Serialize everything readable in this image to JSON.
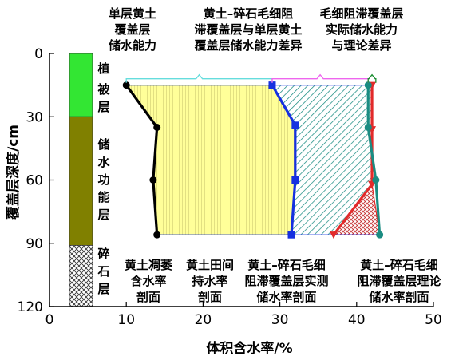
{
  "axes": {
    "x_title": "体积含水率/%",
    "y_title": "覆盖层深度/cm",
    "x_ticks": [
      "0",
      "10",
      "20",
      "30",
      "40",
      "50"
    ],
    "y_ticks": [
      "0",
      "30",
      "60",
      "90",
      "120"
    ]
  },
  "layers": [
    {
      "label": "植被层",
      "lines": [
        "植",
        "被",
        "层"
      ],
      "depth_from": 0,
      "depth_to": 30,
      "color": "#33e633"
    },
    {
      "label": "储水功能层",
      "lines": [
        "储",
        "水",
        "功",
        "能",
        "层"
      ],
      "depth_from": 30,
      "depth_to": 91,
      "color": "#808000"
    },
    {
      "label": "碎石层",
      "lines": [
        "碎",
        "石",
        "层"
      ],
      "depth_from": 91,
      "depth_to": 120,
      "color": "#cccccc"
    }
  ],
  "top_annotations": [
    {
      "id": "single",
      "lines": [
        "单层黄土",
        "覆盖层",
        "储水能力"
      ]
    },
    {
      "id": "diff",
      "lines": [
        "黄土–碎石毛细阻",
        "滞覆盖层与单层黄土",
        "覆盖层储水能力差异"
      ]
    },
    {
      "id": "actual",
      "lines": [
        "毛细阻滞覆盖层",
        "实际储水能力",
        "与理论差异"
      ]
    }
  ],
  "bottom_annotations": [
    {
      "id": "wilting",
      "lines": [
        "黄土凋萎",
        "含水率",
        "剖面"
      ]
    },
    {
      "id": "field",
      "lines": [
        "黄土田间",
        "持水率",
        "剖面"
      ]
    },
    {
      "id": "measured",
      "lines": [
        "黄土–碎石毛细",
        "阻滞覆盖层实测",
        "储水率剖面"
      ]
    },
    {
      "id": "theory",
      "lines": [
        "黄土–碎石毛细",
        "阻滞覆盖层理论",
        "储水率剖面"
      ]
    }
  ],
  "chart_data": {
    "type": "line",
    "xlim": [
      0,
      50
    ],
    "ylim": [
      0,
      120
    ],
    "y_inverted": true,
    "series": [
      {
        "key": "wilting",
        "color": "#000000",
        "marker": "circle",
        "points": [
          [
            10,
            15
          ],
          [
            14,
            35
          ],
          [
            13.5,
            60
          ],
          [
            14,
            86
          ]
        ]
      },
      {
        "key": "field",
        "color": "#1530e0",
        "marker": "square",
        "points": [
          [
            29,
            15
          ],
          [
            32,
            34
          ],
          [
            32,
            60
          ],
          [
            31.5,
            86
          ]
        ]
      },
      {
        "key": "measured",
        "color": "#e22a2a",
        "marker": "triangle",
        "points": [
          [
            42,
            15
          ],
          [
            42,
            36
          ],
          [
            42,
            62
          ],
          [
            37,
            86
          ]
        ]
      },
      {
        "key": "theory",
        "color": "#1a8c82",
        "marker": "circle",
        "points": [
          [
            41.5,
            15
          ],
          [
            41.5,
            35
          ],
          [
            42.5,
            60
          ],
          [
            43,
            86
          ]
        ]
      }
    ],
    "bracket_y": 12
  }
}
